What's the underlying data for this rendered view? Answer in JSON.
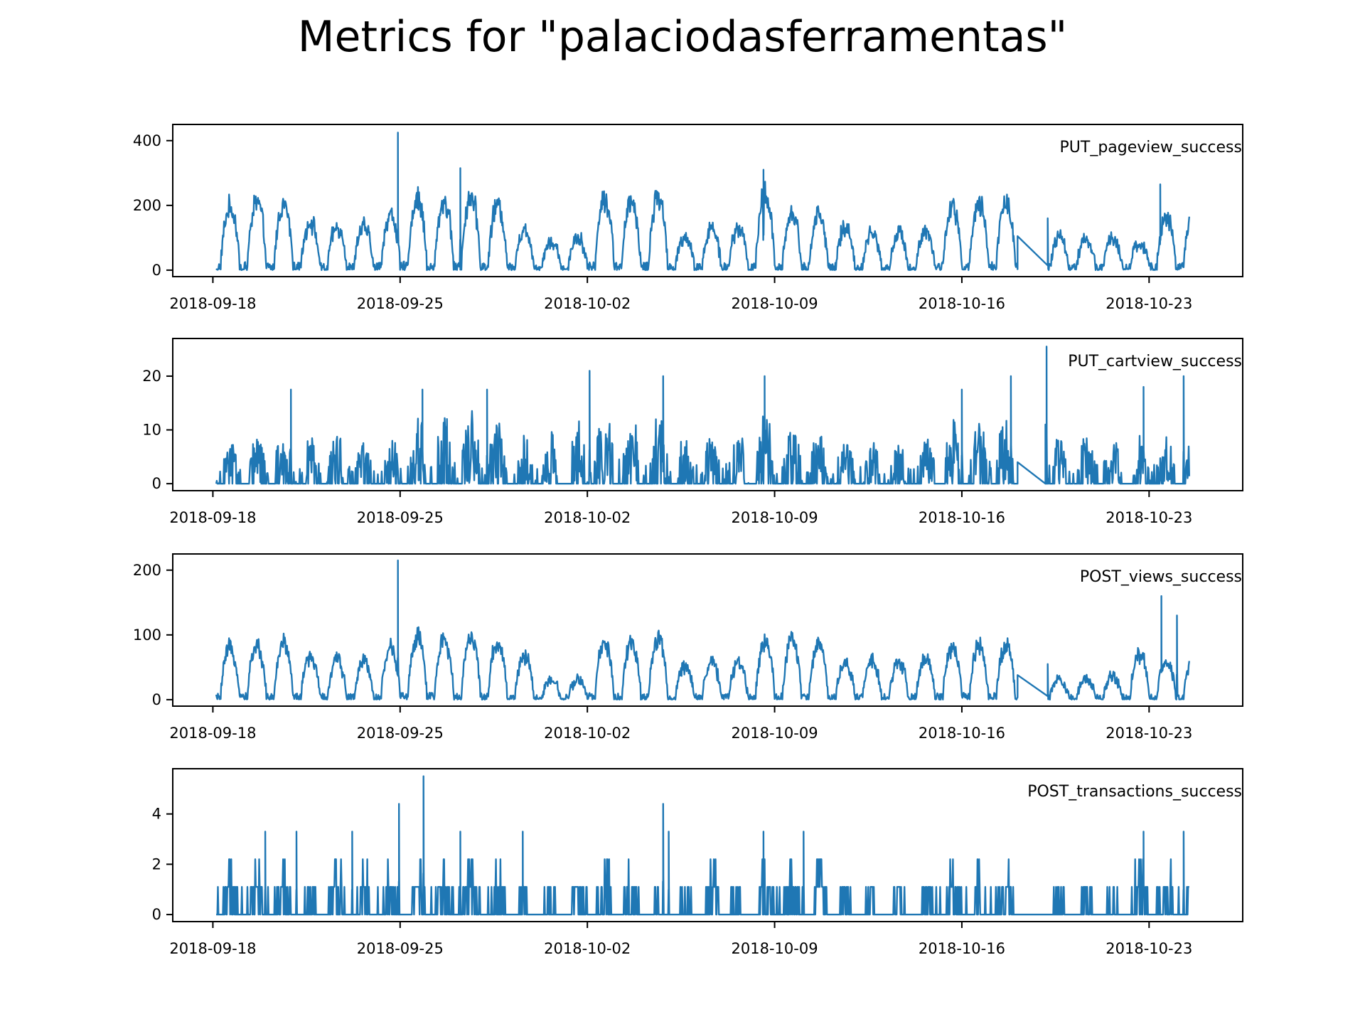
{
  "title": "Metrics for \"palaciodasferramentas\"",
  "colors": {
    "series": "#1f77b4",
    "axes": "#000000",
    "background": "#ffffff"
  },
  "chart_data": [
    {
      "type": "line",
      "series_name": "PUT_pageview_success",
      "x_range": [
        "2018-09-18T00:00",
        "2018-10-24T12:00"
      ],
      "x_ticks": [
        "2018-09-18",
        "2018-09-25",
        "2018-10-02",
        "2018-10-09",
        "2018-10-16",
        "2018-10-23"
      ],
      "ylim": [
        -20,
        450
      ],
      "y_ticks": [
        0,
        200,
        400
      ],
      "legend_position": "top-right",
      "daily_peak": [
        220,
        240,
        230,
        170,
        150,
        155,
        195,
        250,
        240,
        260,
        230,
        140,
        100,
        120,
        250,
        240,
        260,
        120,
        145,
        150,
        270,
        200,
        195,
        150,
        130,
        130,
        140,
        220,
        230,
        240,
        180,
        120,
        110,
        110,
        95,
        185
      ],
      "spikes": [
        {
          "x": "2018-09-24T22:00",
          "y": 425
        },
        {
          "x": "2018-09-27T06:00",
          "y": 315
        },
        {
          "x": "2018-10-08T14:00",
          "y": 310
        },
        {
          "x": "2018-10-23T10:00",
          "y": 265
        }
      ],
      "gap": {
        "from": "2018-10-18T02:00",
        "to": "2018-10-19T05:00",
        "from_y": 105,
        "to_y": 160
      },
      "noise": 35
    },
    {
      "type": "line",
      "series_name": "PUT_cartview_success",
      "x_range": [
        "2018-09-18T00:00",
        "2018-10-24T12:00"
      ],
      "x_ticks": [
        "2018-09-18",
        "2018-09-25",
        "2018-10-02",
        "2018-10-09",
        "2018-10-16",
        "2018-10-23"
      ],
      "ylim": [
        -1.3,
        27
      ],
      "y_ticks": [
        0,
        10,
        20
      ],
      "legend_position": "top-right",
      "daily_peak": [
        8,
        9,
        10,
        9,
        10,
        8,
        10,
        14,
        13,
        14,
        12,
        10,
        10,
        12,
        14,
        13,
        14,
        9,
        9,
        10,
        14,
        12,
        10,
        8,
        8,
        8,
        9,
        12,
        12,
        13,
        11,
        9,
        9,
        9,
        9,
        9
      ],
      "spikes": [
        {
          "x": "2018-09-20T22:00",
          "y": 17.5
        },
        {
          "x": "2018-09-25T20:00",
          "y": 17.5
        },
        {
          "x": "2018-09-28T06:00",
          "y": 17.5
        },
        {
          "x": "2018-10-02T02:00",
          "y": 21
        },
        {
          "x": "2018-10-04T20:00",
          "y": 20
        },
        {
          "x": "2018-10-08T15:00",
          "y": 20
        },
        {
          "x": "2018-10-16T00:00",
          "y": 17.5
        },
        {
          "x": "2018-10-17T20:00",
          "y": 20
        },
        {
          "x": "2018-10-19T04:00",
          "y": 25.5
        },
        {
          "x": "2018-10-22T19:00",
          "y": 18
        },
        {
          "x": "2018-10-24T07:00",
          "y": 20
        }
      ],
      "gap": {
        "from": "2018-10-18T02:00",
        "to": "2018-10-19T03:00",
        "from_y": 4,
        "to_y": 11
      },
      "noise": 0,
      "sparse": true
    },
    {
      "type": "line",
      "series_name": "POST_views_success",
      "x_range": [
        "2018-09-18T00:00",
        "2018-10-24T12:00"
      ],
      "x_ticks": [
        "2018-09-18",
        "2018-09-25",
        "2018-10-02",
        "2018-10-09",
        "2018-10-16",
        "2018-10-23"
      ],
      "ylim": [
        -10,
        225
      ],
      "y_ticks": [
        0,
        100,
        200
      ],
      "legend_position": "top-right",
      "daily_peak": [
        90,
        95,
        100,
        75,
        70,
        70,
        90,
        110,
        105,
        110,
        100,
        75,
        35,
        35,
        100,
        100,
        105,
        60,
        65,
        65,
        105,
        105,
        100,
        65,
        65,
        65,
        70,
        90,
        95,
        95,
        75,
        35,
        35,
        40,
        80,
        70
      ],
      "spikes": [
        {
          "x": "2018-09-24T22:00",
          "y": 215
        },
        {
          "x": "2018-10-23T11:00",
          "y": 160
        },
        {
          "x": "2018-10-24T01:00",
          "y": 130
        }
      ],
      "gap": {
        "from": "2018-10-18T02:00",
        "to": "2018-10-19T05:00",
        "from_y": 38,
        "to_y": 55
      },
      "noise": 14
    },
    {
      "type": "line",
      "series_name": "POST_transactions_success",
      "x_range": [
        "2018-09-18T00:00",
        "2018-10-24T12:00"
      ],
      "x_ticks": [
        "2018-09-18",
        "2018-09-25",
        "2018-10-02",
        "2018-10-09",
        "2018-10-16",
        "2018-10-23"
      ],
      "ylim": [
        -0.28,
        5.8
      ],
      "y_ticks": [
        0,
        2,
        4
      ],
      "legend_position": "top-right",
      "daily_peak": [
        2,
        2.2,
        2,
        1.1,
        2.2,
        2,
        2.2,
        2.2,
        2,
        2,
        2,
        1.1,
        1.1,
        2,
        2.2,
        2,
        1.1,
        1.1,
        2,
        1.1,
        2.2,
        2,
        2,
        1.1,
        1.1,
        1.1,
        1.1,
        2,
        2,
        2.2,
        1.1,
        1.1,
        1.1,
        1.1,
        2.2,
        2.2
      ],
      "spikes": [
        {
          "x": "2018-09-19T23:00",
          "y": 3.3
        },
        {
          "x": "2018-09-21T03:00",
          "y": 3.3
        },
        {
          "x": "2018-09-23T05:00",
          "y": 3.3
        },
        {
          "x": "2018-09-24T23:00",
          "y": 4.4
        },
        {
          "x": "2018-09-25T21:00",
          "y": 5.5
        },
        {
          "x": "2018-09-27T06:00",
          "y": 3.3
        },
        {
          "x": "2018-09-29T14:00",
          "y": 3.3
        },
        {
          "x": "2018-10-04T20:00",
          "y": 4.4
        },
        {
          "x": "2018-10-05T01:00",
          "y": 3.3
        },
        {
          "x": "2018-10-08T14:00",
          "y": 3.3
        },
        {
          "x": "2018-10-10T02:00",
          "y": 3.3
        },
        {
          "x": "2018-10-22T19:00",
          "y": 3.3
        },
        {
          "x": "2018-10-24T07:00",
          "y": 3.3
        }
      ],
      "gap": {
        "from": "2018-10-18T02:00",
        "to": "2018-10-19T02:00",
        "from_y": 0,
        "to_y": 0
      },
      "noise": 0,
      "sparse": true,
      "discrete": true
    }
  ]
}
